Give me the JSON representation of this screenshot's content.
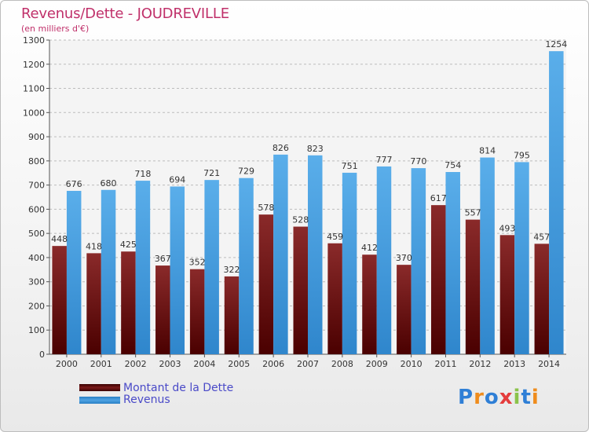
{
  "header": {
    "title": "Revenus/Dette - JOUDREVILLE",
    "subtitle": "(en milliers d'€)"
  },
  "colors": {
    "dette": "#7a1a1a",
    "revenus": "#4fa3e3",
    "title": "#c0306a",
    "legend_text": "#4a4ac8"
  },
  "legend": {
    "dette_label": "Montant de la Dette",
    "revenus_label": "Revenus"
  },
  "logo": {
    "text": "Proxiti"
  },
  "chart_data": {
    "type": "bar",
    "title": "Revenus/Dette - JOUDREVILLE",
    "subtitle": "(en milliers d'€)",
    "categories": [
      "2000",
      "2001",
      "2002",
      "2003",
      "2004",
      "2005",
      "2006",
      "2007",
      "2008",
      "2009",
      "2010",
      "2011",
      "2012",
      "2013",
      "2014"
    ],
    "series": [
      {
        "name": "Montant de la Dette",
        "values": [
          448,
          418,
          425,
          367,
          352,
          322,
          578,
          528,
          459,
          412,
          370,
          617,
          557,
          493,
          457
        ]
      },
      {
        "name": "Revenus",
        "values": [
          676,
          680,
          718,
          694,
          721,
          729,
          826,
          823,
          751,
          777,
          770,
          754,
          814,
          795,
          1254
        ]
      }
    ],
    "ylim": [
      0,
      1300
    ],
    "yticks": [
      0,
      100,
      200,
      300,
      400,
      500,
      600,
      700,
      800,
      900,
      1000,
      1100,
      1200,
      1300
    ],
    "grid": true,
    "legend_position": "bottom-left"
  }
}
